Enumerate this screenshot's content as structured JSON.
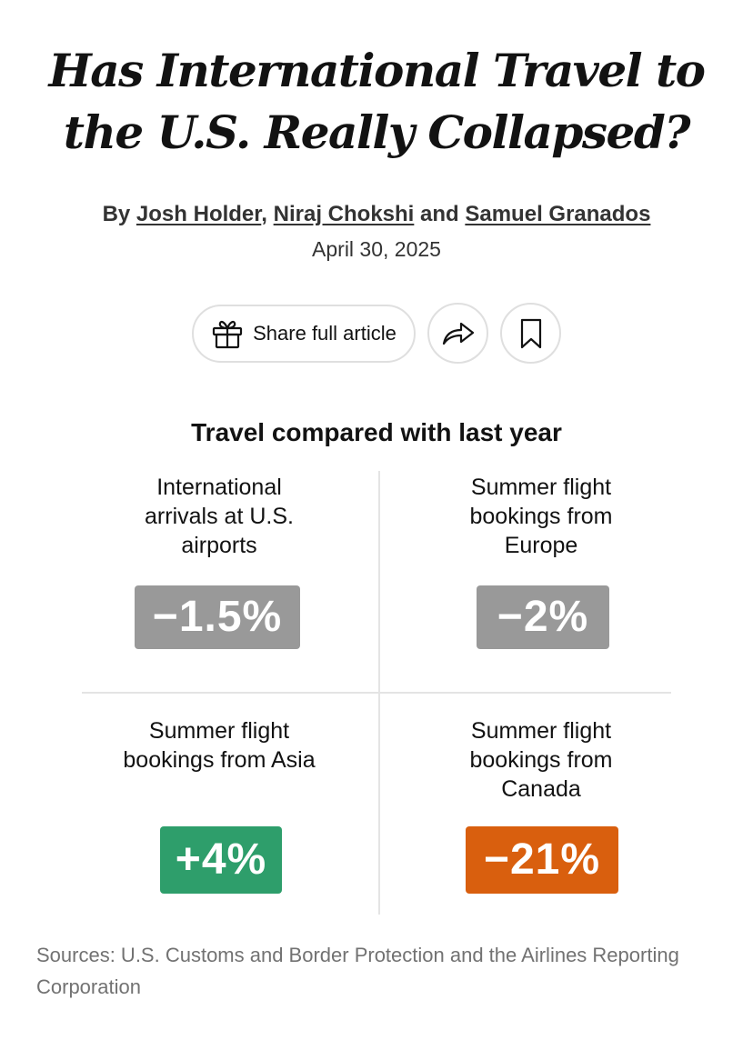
{
  "article": {
    "headline": "Has International Travel to the U.S. Really Collapsed?",
    "byline_prefix": "By",
    "authors": [
      "Josh Holder",
      "Niraj Chokshi",
      "Samuel Granados"
    ],
    "byline_sep1": ",",
    "byline_and": "and",
    "date": "April 30, 2025"
  },
  "actions": {
    "share_full_article_label": "Share full article",
    "share_icon": "gift-icon",
    "forward_icon": "share-arrow-icon",
    "bookmark_icon": "bookmark-icon"
  },
  "graphic": {
    "title": "Travel compared with last year",
    "cells": [
      {
        "label": "International arrivals at U.S. airports",
        "value": "−1.5%",
        "color": "#999999"
      },
      {
        "label": "Summer flight bookings from Europe",
        "value": "−2%",
        "color": "#999999"
      },
      {
        "label": "Summer flight bookings from Asia",
        "value": "+4%",
        "color": "#2e9e6b"
      },
      {
        "label": "Summer flight bookings from Canada",
        "value": "−21%",
        "color": "#d95f0e"
      }
    ],
    "sources": "Sources: U.S. Customs and Border Protection and the Airlines Reporting Corporation"
  }
}
